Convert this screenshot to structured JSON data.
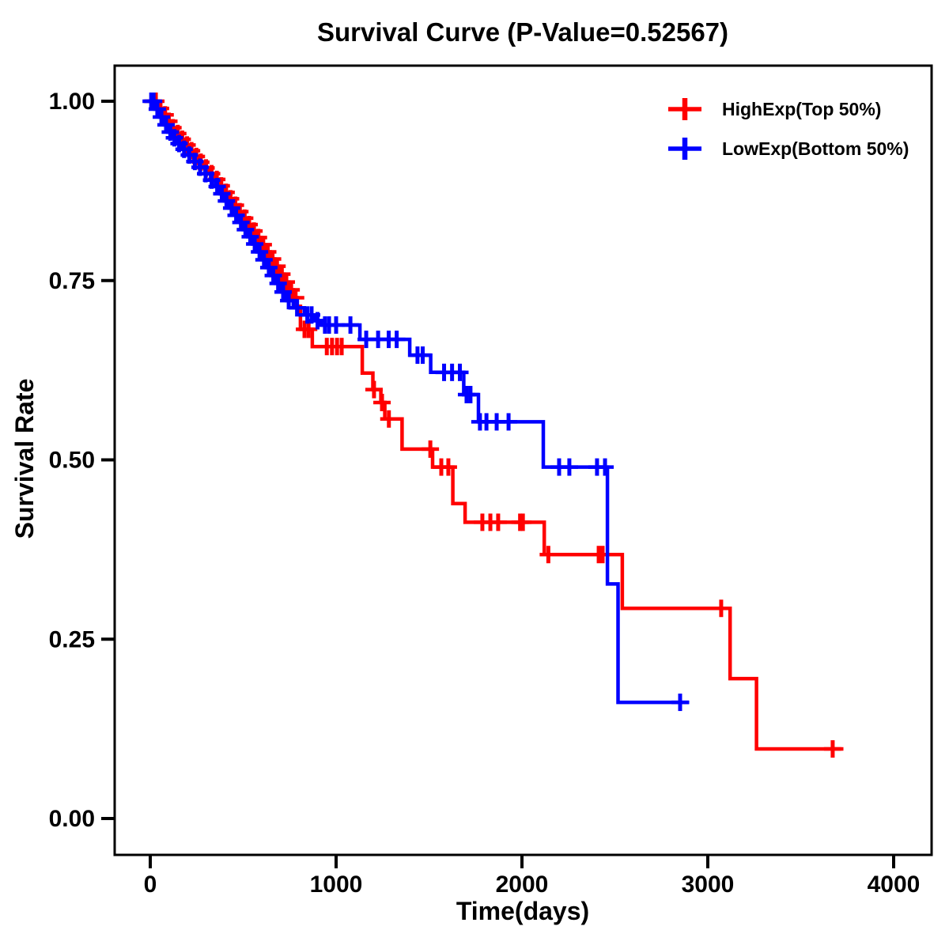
{
  "chart_data": {
    "type": "line",
    "subtype": "kaplan-meier-step-survival",
    "title": "Survival Curve (P-Value=0.52567)",
    "xlabel": "Time(days)",
    "ylabel": "Survival Rate",
    "x_ticks": [
      0,
      1000,
      2000,
      3000,
      4000
    ],
    "y_ticks": [
      "0.00",
      "0.25",
      "0.50",
      "0.75",
      "1.00"
    ],
    "xlim": [
      -190,
      4200
    ],
    "ylim": [
      -0.05,
      1.05
    ],
    "grid": false,
    "legend_position": "top-right",
    "frame_color": "#000000",
    "background_color": "#ffffff",
    "series": [
      {
        "name": "HighExp(Top 50%)",
        "color": "#ff0000",
        "start": [
          0,
          1.0
        ],
        "end_time": 3730,
        "steps": [
          [
            45,
            0.99
          ],
          [
            70,
            0.981
          ],
          [
            95,
            0.972
          ],
          [
            115,
            0.963
          ],
          [
            135,
            0.955
          ],
          [
            160,
            0.947
          ],
          [
            185,
            0.939
          ],
          [
            210,
            0.931
          ],
          [
            235,
            0.923
          ],
          [
            260,
            0.915
          ],
          [
            285,
            0.907
          ],
          [
            315,
            0.899
          ],
          [
            345,
            0.891
          ],
          [
            370,
            0.882
          ],
          [
            395,
            0.873
          ],
          [
            420,
            0.864
          ],
          [
            445,
            0.855
          ],
          [
            470,
            0.846
          ],
          [
            495,
            0.837
          ],
          [
            520,
            0.828
          ],
          [
            545,
            0.819
          ],
          [
            570,
            0.81
          ],
          [
            595,
            0.8
          ],
          [
            620,
            0.79
          ],
          [
            645,
            0.78
          ],
          [
            670,
            0.77
          ],
          [
            695,
            0.759
          ],
          [
            720,
            0.748
          ],
          [
            745,
            0.737
          ],
          [
            770,
            0.726
          ],
          [
            790,
            0.714
          ],
          [
            808,
            0.682
          ],
          [
            872,
            0.658
          ],
          [
            1141,
            0.621
          ],
          [
            1198,
            0.598
          ],
          [
            1241,
            0.58
          ],
          [
            1262,
            0.557
          ],
          [
            1355,
            0.515
          ],
          [
            1519,
            0.49
          ],
          [
            1628,
            0.439
          ],
          [
            1694,
            0.413
          ],
          [
            2120,
            0.368
          ],
          [
            2540,
            0.293
          ],
          [
            3120,
            0.195
          ],
          [
            3262,
            0.097
          ]
        ],
        "censor_times": [
          12,
          30,
          55,
          80,
          100,
          122,
          148,
          172,
          198,
          222,
          248,
          272,
          300,
          330,
          358,
          382,
          408,
          432,
          458,
          482,
          508,
          532,
          558,
          582,
          608,
          632,
          658,
          682,
          708,
          732,
          758,
          782,
          830,
          852,
          950,
          978,
          1005,
          1030,
          1204,
          1247,
          1284,
          1507,
          1566,
          1604,
          1787,
          1830,
          1872,
          1990,
          2005,
          2142,
          2413,
          2434,
          3072,
          3672
        ]
      },
      {
        "name": "LowExp(Bottom 50%)",
        "color": "#0000ff",
        "start": [
          0,
          1.0
        ],
        "end_time": 2900,
        "steps": [
          [
            25,
            0.989
          ],
          [
            50,
            0.978
          ],
          [
            75,
            0.967
          ],
          [
            95,
            0.957
          ],
          [
            120,
            0.949
          ],
          [
            145,
            0.941
          ],
          [
            175,
            0.933
          ],
          [
            205,
            0.925
          ],
          [
            235,
            0.916
          ],
          [
            265,
            0.908
          ],
          [
            295,
            0.899
          ],
          [
            325,
            0.89
          ],
          [
            350,
            0.881
          ],
          [
            375,
            0.871
          ],
          [
            400,
            0.861
          ],
          [
            425,
            0.851
          ],
          [
            450,
            0.841
          ],
          [
            475,
            0.831
          ],
          [
            500,
            0.821
          ],
          [
            525,
            0.811
          ],
          [
            550,
            0.801
          ],
          [
            575,
            0.79
          ],
          [
            600,
            0.779
          ],
          [
            625,
            0.768
          ],
          [
            650,
            0.757
          ],
          [
            675,
            0.746
          ],
          [
            705,
            0.734
          ],
          [
            735,
            0.722
          ],
          [
            770,
            0.712
          ],
          [
            829,
            0.702
          ],
          [
            880,
            0.694
          ],
          [
            920,
            0.688
          ],
          [
            1128,
            0.668
          ],
          [
            1396,
            0.646
          ],
          [
            1509,
            0.622
          ],
          [
            1687,
            0.591
          ],
          [
            1766,
            0.553
          ],
          [
            2115,
            0.49
          ],
          [
            2460,
            0.327
          ],
          [
            2517,
            0.162
          ]
        ],
        "censor_times": [
          5,
          18,
          38,
          60,
          85,
          108,
          130,
          155,
          182,
          210,
          240,
          268,
          298,
          330,
          360,
          385,
          410,
          438,
          462,
          488,
          512,
          538,
          562,
          588,
          612,
          638,
          662,
          688,
          715,
          745,
          790,
          845,
          868,
          900,
          940,
          962,
          1000,
          1077,
          1162,
          1226,
          1283,
          1326,
          1438,
          1466,
          1581,
          1624,
          1666,
          1702,
          1723,
          1774,
          1809,
          1864,
          1928,
          2200,
          2255,
          2404,
          2447,
          2851
        ]
      }
    ]
  }
}
